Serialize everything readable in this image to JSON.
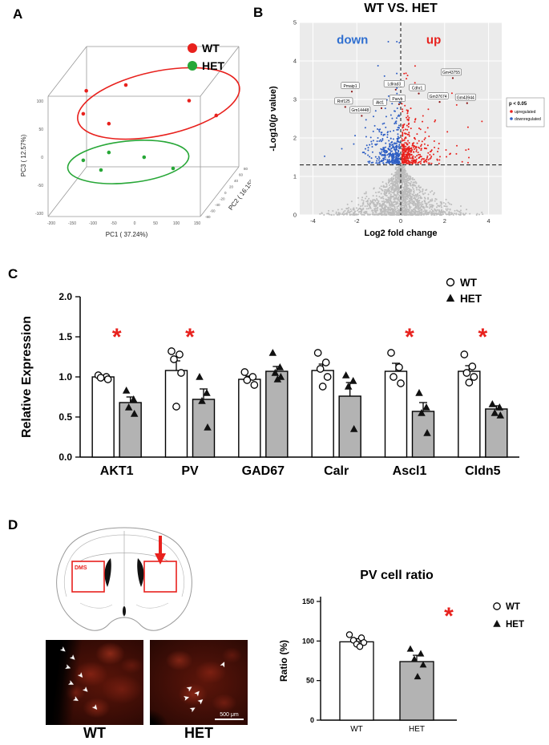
{
  "panels": {
    "a": {
      "label": "A"
    },
    "b": {
      "label": "B"
    },
    "c": {
      "label": "C"
    },
    "d": {
      "label": "D"
    }
  },
  "colors": {
    "wt_red": "#e8211d",
    "het_green": "#27a737",
    "up_red": "#e8211d",
    "down_blue": "#2f5fc4",
    "ns_gray": "#bcbcbc",
    "bar_gray": "#b3b3b3",
    "sig_red": "#e8211d"
  },
  "panel_d": {
    "dms_label": "DMS",
    "scale_bar": "500 μm",
    "image_labels": [
      "WT",
      "HET"
    ]
  },
  "chart_data": [
    {
      "id": "pca",
      "type": "scatter",
      "projection": "3d",
      "legend": [
        {
          "label": "WT",
          "color": "#e8211d"
        },
        {
          "label": "HET",
          "color": "#27a737"
        }
      ],
      "axes": {
        "x": {
          "label": "PC1 ( 37.24%)",
          "ticks": [
            "-200",
            "-150",
            "-100",
            "-50",
            "0",
            "50",
            "100",
            "150"
          ]
        },
        "y": {
          "label": "PC2 ( 16.15%)",
          "ticks": [
            "-80",
            "-60",
            "-40",
            "-20",
            "0",
            "20",
            "40",
            "60",
            "80"
          ]
        },
        "z": {
          "label": "PC3 ( 12.57%)",
          "ticks": [
            "-100",
            "-50",
            "0",
            "50",
            "100"
          ]
        }
      },
      "groups": [
        {
          "name": "WT",
          "color": "#e8211d",
          "ellipse": {
            "cx": 0.574,
            "cy": 0.317,
            "rx": 0.438,
            "ry": 0.195,
            "angle": -12
          },
          "points": [
            [
              0.19,
              0.24
            ],
            [
              0.4,
              0.205
            ],
            [
              0.736,
              0.3
            ],
            [
              0.88,
              0.39
            ],
            [
              0.31,
              0.44
            ],
            [
              0.174,
              0.38
            ]
          ]
        },
        {
          "name": "HET",
          "color": "#27a737",
          "ellipse": {
            "cx": 0.413,
            "cy": 0.673,
            "rx": 0.323,
            "ry": 0.127,
            "angle": -6
          },
          "points": [
            [
              0.174,
              0.663
            ],
            [
              0.31,
              0.615
            ],
            [
              0.497,
              0.644
            ],
            [
              0.651,
              0.712
            ],
            [
              0.268,
              0.722
            ]
          ]
        }
      ]
    },
    {
      "id": "volcano",
      "type": "scatter",
      "title": "WT VS. HET",
      "xlabel": "Log2 fold change",
      "ylabel": "-Log10(p value)",
      "xlim": [
        -4.6,
        4.6
      ],
      "ylim": [
        0,
        5
      ],
      "xticks": [
        -4,
        -2,
        0,
        2,
        4
      ],
      "yticks": [
        0,
        1,
        2,
        3,
        4,
        5
      ],
      "sig_threshold_y": 1.3,
      "fold_threshold_x": 0,
      "down_label": {
        "text": "down",
        "color": "#2f6fd0"
      },
      "up_label": {
        "text": "up",
        "color": "#e8211d"
      },
      "legend": {
        "title": "p < 0.05",
        "items": [
          {
            "label": "upregulated",
            "color": "#e8211d"
          },
          {
            "label": "downregulated",
            "color": "#2f5fc4"
          }
        ]
      },
      "point_colors": {
        "up": "#e8211d",
        "down": "#2f5fc4",
        "ns": "#bcbcbc"
      },
      "gene_labels": [
        {
          "text": "Pmaip1",
          "x": -2.3,
          "y": 3.35
        },
        {
          "text": "Rnf125",
          "x": -2.6,
          "y": 2.95
        },
        {
          "text": "Gm14448",
          "x": -1.85,
          "y": 2.72
        },
        {
          "text": "Akt1",
          "x": -0.95,
          "y": 2.92
        },
        {
          "text": "Ldlrad3",
          "x": -0.3,
          "y": 3.4
        },
        {
          "text": "Parvb",
          "x": -0.15,
          "y": 3.02
        },
        {
          "text": "Cdhr1",
          "x": 0.75,
          "y": 3.3
        },
        {
          "text": "Gm37674",
          "x": 1.7,
          "y": 3.08
        },
        {
          "text": "Gm43755",
          "x": 2.3,
          "y": 3.7
        },
        {
          "text": "Gm43944",
          "x": 2.95,
          "y": 3.05
        }
      ]
    },
    {
      "id": "relative_expression",
      "type": "bar",
      "categories": [
        "AKT1",
        "PV",
        "GAD67",
        "Calr",
        "Ascl1",
        "Cldn5"
      ],
      "ylabel": "Relative Expression",
      "ylim": [
        0,
        2.0
      ],
      "yticks": [
        "0.0",
        "0.5",
        "1.0",
        "1.5",
        "2.0"
      ],
      "series": [
        {
          "name": "WT",
          "marker": "circle",
          "fill": "#ffffff",
          "values": [
            1.0,
            1.08,
            0.97,
            1.08,
            1.07,
            1.07
          ],
          "errors": [
            0.02,
            0.12,
            0.04,
            0.08,
            0.1,
            0.07
          ],
          "points": [
            [
              1.02,
              1.0,
              0.99,
              0.97
            ],
            [
              1.32,
              1.28,
              1.22,
              1.05,
              0.63
            ],
            [
              1.06,
              1.0,
              0.96,
              0.9
            ],
            [
              1.3,
              1.18,
              1.1,
              1.0,
              0.88
            ],
            [
              1.3,
              1.12,
              1.0,
              0.92
            ],
            [
              1.28,
              1.13,
              1.05,
              1.0,
              0.93
            ]
          ]
        },
        {
          "name": "HET",
          "marker": "triangle",
          "fill": "#b3b3b3",
          "values": [
            0.68,
            0.72,
            1.07,
            0.76,
            0.57,
            0.6
          ],
          "errors": [
            0.07,
            0.13,
            0.06,
            0.17,
            0.11,
            0.04
          ],
          "points": [
            [
              0.83,
              0.72,
              0.62,
              0.54
            ],
            [
              1.0,
              0.8,
              0.7,
              0.37
            ],
            [
              1.3,
              1.12,
              1.05,
              1.0,
              0.97
            ],
            [
              1.02,
              0.95,
              0.88,
              0.35
            ],
            [
              0.8,
              0.62,
              0.55,
              0.3
            ],
            [
              0.66,
              0.62,
              0.55,
              0.52
            ]
          ]
        }
      ],
      "significant": [
        true,
        true,
        false,
        false,
        true,
        true
      ],
      "sig_symbol": "*",
      "sig_color": "#e8211d"
    },
    {
      "id": "pv_cell_ratio",
      "type": "bar",
      "title": "PV cell ratio",
      "categories": [
        "WT",
        "HET"
      ],
      "ylabel": "Ratio (%)",
      "ylim": [
        0,
        150
      ],
      "yticks": [
        0,
        50,
        100,
        150
      ],
      "bars": [
        {
          "name": "WT",
          "marker": "circle",
          "fill": "#ffffff",
          "value": 99,
          "error": 4,
          "points": [
            108,
            104,
            101,
            98,
            96,
            93
          ]
        },
        {
          "name": "HET",
          "marker": "triangle",
          "fill": "#b3b3b3",
          "value": 74,
          "error": 8,
          "points": [
            90,
            84,
            77,
            70,
            55
          ]
        }
      ],
      "sig_symbol": "*",
      "sig_color": "#e8211d",
      "legend": [
        {
          "label": "WT",
          "marker": "circle"
        },
        {
          "label": "HET",
          "marker": "triangle"
        }
      ]
    }
  ]
}
